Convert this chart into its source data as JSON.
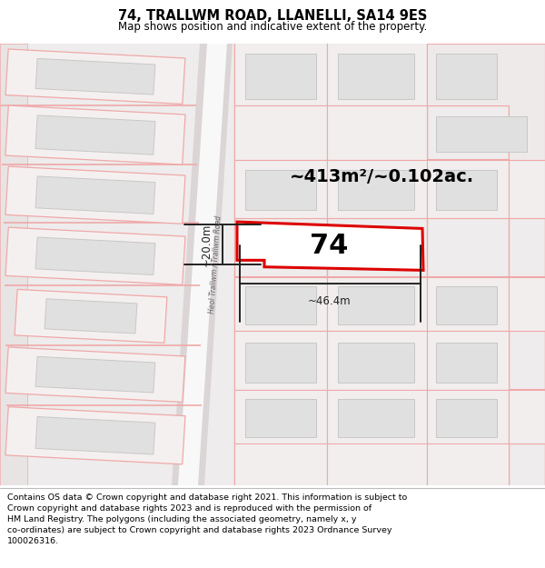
{
  "title": "74, TRALLWM ROAD, LLANELLI, SA14 9ES",
  "subtitle": "Map shows position and indicative extent of the property.",
  "footer": "Contains OS data © Crown copyright and database right 2021. This information is subject to\nCrown copyright and database rights 2023 and is reproduced with the permission of\nHM Land Registry. The polygons (including the associated geometry, namely x, y\nco-ordinates) are subject to Crown copyright and database rights 2023 Ordnance Survey\n100026316.",
  "map_bg": "#f0eeee",
  "road_fill": "#ffffff",
  "road_edge": "#e8b0b0",
  "plot_edge": "#f0a8a8",
  "building_fill": "#e0e0e0",
  "building_edge": "#c8c8c8",
  "highlight_color": "#dd0000",
  "highlight_fill": "#ffffff",
  "dim_color": "#222222",
  "area_text": "~413m²/~0.102ac.",
  "label_74": "74",
  "dim_width": "~46.4m",
  "dim_height": "~20.0m",
  "road_label": "Heol Trallwm / Trallwm Road",
  "title_fontsize": 10.5,
  "subtitle_fontsize": 8.5,
  "footer_fontsize": 6.8,
  "title_color": "#000000",
  "footer_color": "#000000"
}
